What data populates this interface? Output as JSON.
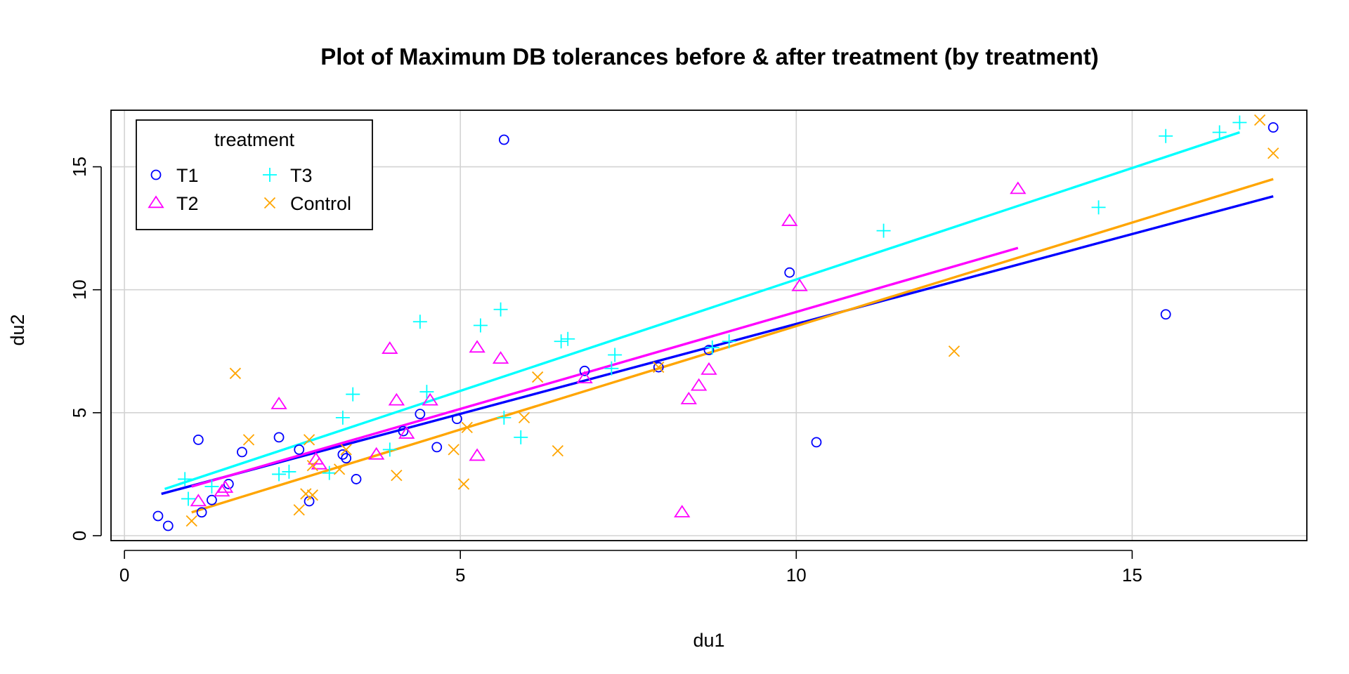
{
  "chart_data": {
    "type": "scatter",
    "title": "Plot of Maximum DB tolerances before & after treatment (by treatment)",
    "xlabel": "du1",
    "ylabel": "du2",
    "xlim": [
      -0.2,
      17.6
    ],
    "ylim": [
      -0.2,
      17.3
    ],
    "xticks": [
      0,
      5,
      10,
      15
    ],
    "yticks": [
      0,
      5,
      10,
      15
    ],
    "grid": true,
    "legend": {
      "title": "treatment",
      "position": "top-left",
      "columns": [
        [
          "T1",
          "T2"
        ],
        [
          "T3",
          "Control"
        ]
      ]
    },
    "series": [
      {
        "name": "T1",
        "color": "#0000FF",
        "marker": "circle",
        "points": [
          [
            0.5,
            0.8
          ],
          [
            0.65,
            0.4
          ],
          [
            1.1,
            3.9
          ],
          [
            1.15,
            0.95
          ],
          [
            1.3,
            1.45
          ],
          [
            1.55,
            2.1
          ],
          [
            1.75,
            3.4
          ],
          [
            2.3,
            4.0
          ],
          [
            2.6,
            3.5
          ],
          [
            2.75,
            1.4
          ],
          [
            3.25,
            3.3
          ],
          [
            3.3,
            3.15
          ],
          [
            3.45,
            2.3
          ],
          [
            4.15,
            4.25
          ],
          [
            4.4,
            4.95
          ],
          [
            4.65,
            3.6
          ],
          [
            4.95,
            4.75
          ],
          [
            5.65,
            16.1
          ],
          [
            6.85,
            6.7
          ],
          [
            7.95,
            6.85
          ],
          [
            8.7,
            7.55
          ],
          [
            9.9,
            10.7
          ],
          [
            10.3,
            3.8
          ],
          [
            15.5,
            9.0
          ],
          [
            17.1,
            16.6
          ]
        ],
        "fit": [
          [
            0.55,
            1.7
          ],
          [
            17.1,
            13.8
          ]
        ]
      },
      {
        "name": "T2",
        "color": "#FF00FF",
        "marker": "triangle",
        "points": [
          [
            1.1,
            1.4
          ],
          [
            1.45,
            1.8
          ],
          [
            1.5,
            1.95
          ],
          [
            2.3,
            5.35
          ],
          [
            2.85,
            3.1
          ],
          [
            2.9,
            2.9
          ],
          [
            3.75,
            3.3
          ],
          [
            3.95,
            7.6
          ],
          [
            4.05,
            5.5
          ],
          [
            4.2,
            4.15
          ],
          [
            4.55,
            5.5
          ],
          [
            5.25,
            7.65
          ],
          [
            5.25,
            3.25
          ],
          [
            5.6,
            7.2
          ],
          [
            6.85,
            6.4
          ],
          [
            8.3,
            0.95
          ],
          [
            8.4,
            5.55
          ],
          [
            8.55,
            6.1
          ],
          [
            8.7,
            6.75
          ],
          [
            9.9,
            12.8
          ],
          [
            10.05,
            10.15
          ],
          [
            13.3,
            14.1
          ]
        ],
        "fit": [
          [
            1.0,
            2.0
          ],
          [
            13.3,
            11.7
          ]
        ]
      },
      {
        "name": "T3",
        "color": "#00FFFF",
        "marker": "plus",
        "points": [
          [
            0.9,
            2.3
          ],
          [
            0.95,
            1.5
          ],
          [
            1.3,
            2.0
          ],
          [
            2.3,
            2.5
          ],
          [
            2.45,
            2.6
          ],
          [
            3.05,
            2.55
          ],
          [
            3.25,
            4.8
          ],
          [
            3.4,
            5.75
          ],
          [
            3.95,
            3.5
          ],
          [
            4.4,
            8.7
          ],
          [
            4.5,
            5.85
          ],
          [
            5.3,
            8.55
          ],
          [
            5.6,
            9.2
          ],
          [
            5.65,
            4.8
          ],
          [
            5.9,
            4.0
          ],
          [
            6.5,
            7.9
          ],
          [
            6.6,
            8.0
          ],
          [
            7.25,
            6.8
          ],
          [
            7.3,
            7.35
          ],
          [
            8.75,
            7.65
          ],
          [
            9.0,
            7.9
          ],
          [
            11.3,
            12.4
          ],
          [
            14.5,
            13.35
          ],
          [
            15.5,
            16.25
          ],
          [
            16.3,
            16.4
          ],
          [
            16.6,
            16.8
          ]
        ],
        "fit": [
          [
            0.6,
            1.9
          ],
          [
            16.6,
            16.4
          ]
        ]
      },
      {
        "name": "Control",
        "color": "#FFA500",
        "marker": "x",
        "points": [
          [
            1.0,
            0.6
          ],
          [
            1.65,
            6.6
          ],
          [
            1.85,
            3.9
          ],
          [
            2.6,
            1.05
          ],
          [
            2.7,
            1.7
          ],
          [
            2.75,
            3.9
          ],
          [
            2.8,
            1.65
          ],
          [
            2.8,
            2.85
          ],
          [
            3.2,
            2.7
          ],
          [
            3.3,
            3.5
          ],
          [
            4.05,
            2.45
          ],
          [
            4.9,
            3.5
          ],
          [
            5.05,
            2.1
          ],
          [
            5.1,
            4.4
          ],
          [
            5.95,
            4.8
          ],
          [
            6.15,
            6.45
          ],
          [
            6.45,
            3.45
          ],
          [
            7.95,
            6.85
          ],
          [
            12.35,
            7.5
          ],
          [
            16.9,
            16.9
          ],
          [
            17.1,
            15.55
          ]
        ],
        "fit": [
          [
            1.0,
            0.95
          ],
          [
            17.1,
            14.5
          ]
        ]
      }
    ]
  }
}
